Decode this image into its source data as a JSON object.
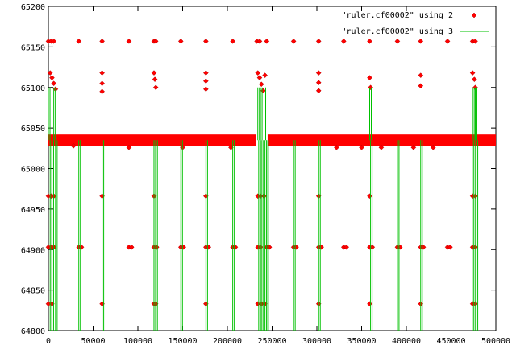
{
  "chart_data": {
    "type": "scatter",
    "title": "",
    "xlabel": "",
    "ylabel": "",
    "xlim": [
      0,
      500000
    ],
    "ylim": [
      64800,
      65200
    ],
    "x_ticks": [
      0,
      50000,
      100000,
      150000,
      200000,
      250000,
      300000,
      350000,
      400000,
      450000,
      500000
    ],
    "y_ticks": [
      64800,
      64850,
      64900,
      64950,
      65000,
      65050,
      65100,
      65150,
      65200
    ],
    "x_tick_labels": [
      "0",
      "50000",
      "100000",
      "150000",
      "200000",
      "250000",
      "300000",
      "350000",
      "400000",
      "450000",
      "500000"
    ],
    "y_tick_labels": [
      "64800",
      "64850",
      "64900",
      "64950",
      "65000",
      "65050",
      "65100",
      "65150",
      "65200"
    ],
    "grid": false,
    "legend_position": "top-right",
    "series": [
      {
        "name": "\"ruler.cf00002\" using 2",
        "style": "points",
        "color": "#ff0000",
        "marker": "diamond",
        "baseline_band": {
          "x_start": 0,
          "x_end": 500000,
          "y_min": 65028,
          "y_max": 65042
        },
        "band_break": {
          "x_start": 232000,
          "x_end": 245000
        },
        "points": [
          [
            0,
            65157
          ],
          [
            3000,
            65157
          ],
          [
            6000,
            65157
          ],
          [
            34000,
            65157
          ],
          [
            60000,
            65157
          ],
          [
            90000,
            65157
          ],
          [
            118000,
            65157
          ],
          [
            120000,
            65157
          ],
          [
            148000,
            65157
          ],
          [
            176000,
            65157
          ],
          [
            206000,
            65157
          ],
          [
            233000,
            65157
          ],
          [
            236000,
            65157
          ],
          [
            244000,
            65157
          ],
          [
            274000,
            65157
          ],
          [
            302000,
            65157
          ],
          [
            330000,
            65157
          ],
          [
            359000,
            65157
          ],
          [
            390000,
            65157
          ],
          [
            416000,
            65157
          ],
          [
            446000,
            65157
          ],
          [
            474000,
            65157
          ],
          [
            477000,
            65157
          ],
          [
            2000,
            65118
          ],
          [
            4000,
            65112
          ],
          [
            6000,
            65105
          ],
          [
            8000,
            65098
          ],
          [
            60000,
            65118
          ],
          [
            60000,
            65105
          ],
          [
            60000,
            65095
          ],
          [
            118000,
            65118
          ],
          [
            119000,
            65110
          ],
          [
            120000,
            65100
          ],
          [
            176000,
            65118
          ],
          [
            176000,
            65108
          ],
          [
            176000,
            65098
          ],
          [
            234000,
            65118
          ],
          [
            236000,
            65112
          ],
          [
            238000,
            65104
          ],
          [
            240000,
            65096
          ],
          [
            242000,
            65115
          ],
          [
            302000,
            65118
          ],
          [
            302000,
            65106
          ],
          [
            302000,
            65096
          ],
          [
            359000,
            65112
          ],
          [
            360000,
            65100
          ],
          [
            416000,
            65115
          ],
          [
            416000,
            65102
          ],
          [
            474000,
            65118
          ],
          [
            476000,
            65110
          ],
          [
            477000,
            65100
          ],
          [
            0,
            64966
          ],
          [
            3000,
            64966
          ],
          [
            6000,
            64966
          ],
          [
            60000,
            64966
          ],
          [
            118000,
            64966
          ],
          [
            176000,
            64966
          ],
          [
            234000,
            64966
          ],
          [
            237000,
            64966
          ],
          [
            241000,
            64966
          ],
          [
            302000,
            64966
          ],
          [
            359000,
            64966
          ],
          [
            474000,
            64966
          ],
          [
            477000,
            64966
          ],
          [
            0,
            64903
          ],
          [
            3000,
            64903
          ],
          [
            6000,
            64903
          ],
          [
            34000,
            64903
          ],
          [
            37000,
            64903
          ],
          [
            90000,
            64903
          ],
          [
            93000,
            64903
          ],
          [
            118000,
            64903
          ],
          [
            121000,
            64903
          ],
          [
            148000,
            64903
          ],
          [
            151000,
            64903
          ],
          [
            176000,
            64903
          ],
          [
            179000,
            64903
          ],
          [
            206000,
            64903
          ],
          [
            209000,
            64903
          ],
          [
            234000,
            64903
          ],
          [
            237000,
            64903
          ],
          [
            244000,
            64903
          ],
          [
            247000,
            64903
          ],
          [
            274000,
            64903
          ],
          [
            277000,
            64903
          ],
          [
            302000,
            64903
          ],
          [
            305000,
            64903
          ],
          [
            330000,
            64903
          ],
          [
            333000,
            64903
          ],
          [
            359000,
            64903
          ],
          [
            362000,
            64903
          ],
          [
            390000,
            64903
          ],
          [
            393000,
            64903
          ],
          [
            416000,
            64903
          ],
          [
            419000,
            64903
          ],
          [
            446000,
            64903
          ],
          [
            449000,
            64903
          ],
          [
            474000,
            64903
          ],
          [
            477000,
            64903
          ],
          [
            0,
            64833
          ],
          [
            4000,
            64833
          ],
          [
            60000,
            64833
          ],
          [
            118000,
            64833
          ],
          [
            120000,
            64833
          ],
          [
            176000,
            64833
          ],
          [
            234000,
            64833
          ],
          [
            238000,
            64833
          ],
          [
            242000,
            64833
          ],
          [
            302000,
            64833
          ],
          [
            359000,
            64833
          ],
          [
            416000,
            64833
          ],
          [
            474000,
            64833
          ],
          [
            477000,
            64833
          ],
          [
            28000,
            65028
          ],
          [
            90000,
            65026
          ],
          [
            150000,
            65026
          ],
          [
            204000,
            65026
          ],
          [
            322000,
            65026
          ],
          [
            350000,
            65026
          ],
          [
            372000,
            65026
          ],
          [
            408000,
            65026
          ],
          [
            430000,
            65026
          ]
        ]
      },
      {
        "name": "\"ruler.cf00002\" using 3",
        "style": "lines",
        "color": "#00c000",
        "baseline": 65035,
        "bottom": 64800,
        "spikes": [
          [
            0,
            65100
          ],
          [
            2000,
            64800
          ],
          [
            4000,
            64800
          ],
          [
            6000,
            65100
          ],
          [
            8000,
            64800
          ],
          [
            34000,
            64800
          ],
          [
            60000,
            64800
          ],
          [
            118000,
            64800
          ],
          [
            120000,
            64800
          ],
          [
            148000,
            64800
          ],
          [
            176000,
            64800
          ],
          [
            206000,
            64800
          ],
          [
            234000,
            65100
          ],
          [
            235000,
            64800
          ],
          [
            237000,
            65100
          ],
          [
            238000,
            64800
          ],
          [
            241000,
            65100
          ],
          [
            242000,
            64800
          ],
          [
            244000,
            64800
          ],
          [
            274000,
            64800
          ],
          [
            302000,
            64800
          ],
          [
            359000,
            65100
          ],
          [
            360000,
            64800
          ],
          [
            390000,
            64800
          ],
          [
            416000,
            64800
          ],
          [
            474000,
            65100
          ],
          [
            475000,
            64800
          ],
          [
            477000,
            65100
          ],
          [
            478000,
            64800
          ]
        ]
      }
    ]
  }
}
